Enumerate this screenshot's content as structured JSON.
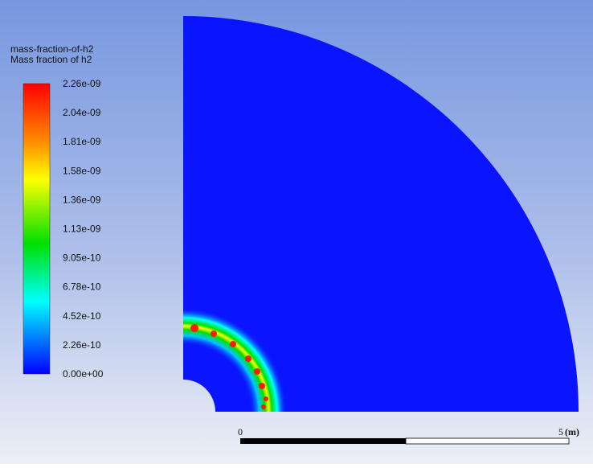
{
  "legend": {
    "title": "mass-fraction-of-h2",
    "subtitle": "Mass fraction of h2",
    "labels": [
      "2.26e-09",
      "2.04e-09",
      "1.81e-09",
      "1.58e-09",
      "1.36e-09",
      "1.13e-09",
      "9.05e-10",
      "6.78e-10",
      "4.52e-10",
      "2.26e-10",
      "0.00e+00"
    ]
  },
  "scale_bar": {
    "start": "0",
    "end": "5",
    "unit": "(m)"
  }
}
